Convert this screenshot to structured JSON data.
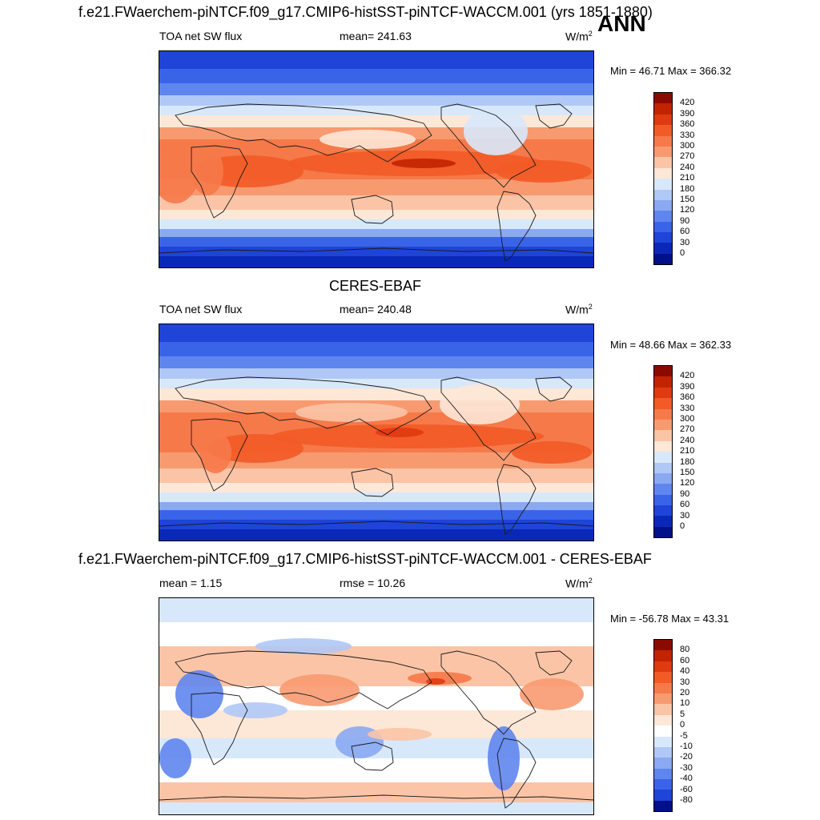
{
  "header": {
    "case_title": "f.e21.FWaerchem-piNTCF.f09_g17.CMIP6-histSST-piNTCF-WACCM.001 (yrs 1851-1880)",
    "season": "ANN"
  },
  "panels": [
    {
      "id": "model",
      "title": "",
      "left": "TOA net SW flux",
      "center": "mean= 241.63",
      "units": "W/m",
      "units_sup": "2",
      "minmax": "Min =  46.71 Max = 366.32",
      "colorbar_labels": [
        "420",
        "390",
        "360",
        "330",
        "300",
        "270",
        "240",
        "210",
        "180",
        "150",
        "120",
        "90",
        "60",
        "30",
        "0"
      ]
    },
    {
      "id": "obs",
      "title": "CERES-EBAF",
      "left": "TOA net SW flux",
      "center": "mean= 240.48",
      "units": "W/m",
      "units_sup": "2",
      "minmax": "Min =  48.66 Max = 362.33",
      "colorbar_labels": [
        "420",
        "390",
        "360",
        "330",
        "300",
        "270",
        "240",
        "210",
        "180",
        "150",
        "120",
        "90",
        "60",
        "30",
        "0"
      ]
    },
    {
      "id": "diff",
      "title": "f.e21.FWaerchem-piNTCF.f09_g17.CMIP6-histSST-piNTCF-WACCM.001 - CERES-EBAF",
      "left": "mean =   1.15",
      "center": "rmse =  10.26",
      "units": "W/m",
      "units_sup": "2",
      "minmax": "Min = -56.78 Max =  43.31",
      "colorbar_labels": [
        "80",
        "60",
        "40",
        "30",
        "20",
        "10",
        "5",
        "0",
        "-5",
        "-10",
        "-20",
        "-30",
        "-40",
        "-60",
        "-80"
      ]
    }
  ],
  "colors": {
    "abs_scale": [
      "#8b0a00",
      "#c22400",
      "#e03a10",
      "#f25a26",
      "#f6794a",
      "#f89a70",
      "#fbc4a6",
      "#fde7d7",
      "#d8e8fb",
      "#b0c8f5",
      "#8aa9f2",
      "#5f86ee",
      "#3a64e8",
      "#1e44d8",
      "#0a28b8",
      "#000f8a"
    ],
    "diff_scale": [
      "#8b0a00",
      "#c22400",
      "#e03a10",
      "#f25a26",
      "#f6794a",
      "#f89a70",
      "#fbc4a6",
      "#fde7d7",
      "#ffffff",
      "#d8e8fb",
      "#b0c8f5",
      "#8aa9f2",
      "#5f86ee",
      "#3a64e8",
      "#1e44d8",
      "#000f8a"
    ]
  }
}
